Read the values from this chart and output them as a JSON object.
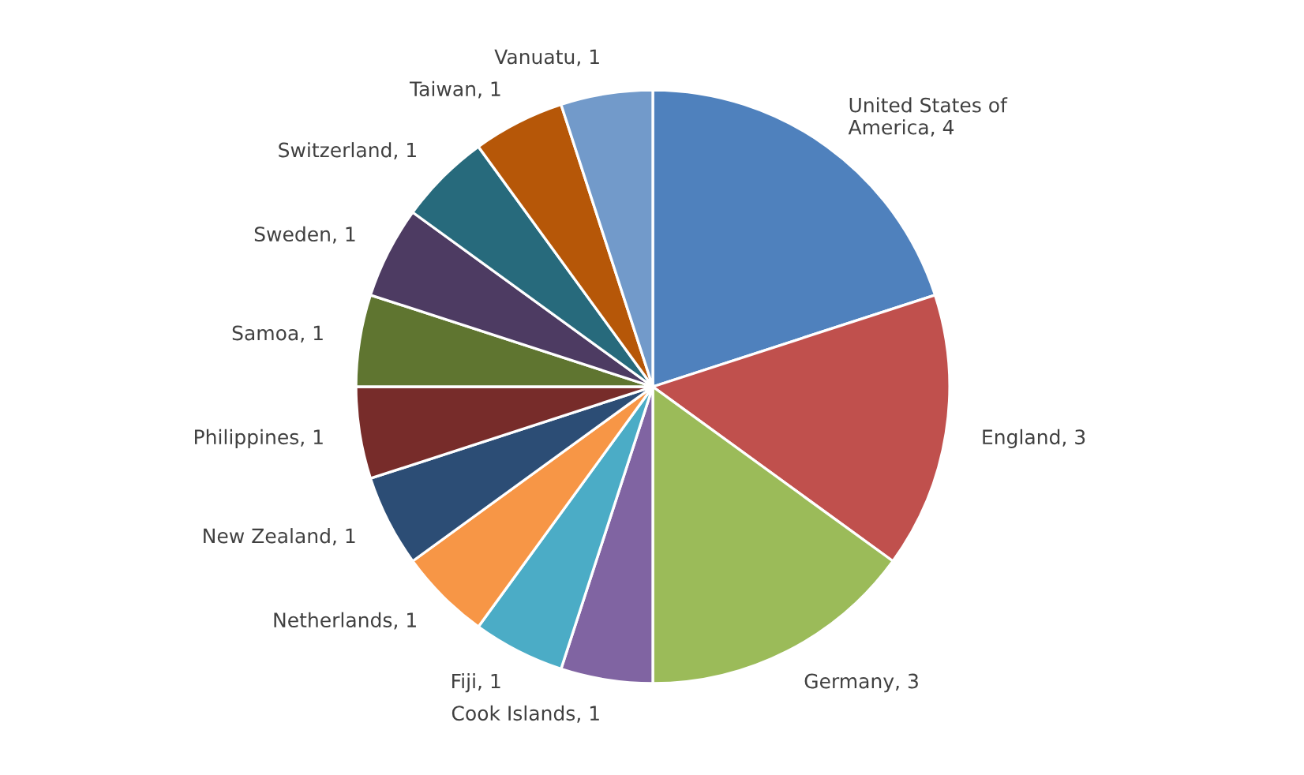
{
  "chart_data": {
    "type": "pie",
    "categories": [
      "United States of America, 4",
      "England, 3",
      "Germany, 3",
      "Cook Islands, 1",
      "Fiji, 1",
      "Netherlands, 1",
      "New Zealand, 1",
      "Philippines, 1",
      "Samoa, 1",
      "Sweden, 1",
      "Switzerland, 1",
      "Taiwan, 1",
      "Vanuatu, 1"
    ],
    "values": [
      4,
      3,
      3,
      1,
      1,
      1,
      1,
      1,
      1,
      1,
      1,
      1,
      1
    ],
    "colors": [
      "#4f81bd",
      "#c0504d",
      "#9bbb59",
      "#8064a2",
      "#4bacc6",
      "#f79646",
      "#2c4d75",
      "#772c2a",
      "#5f7530",
      "#4d3b62",
      "#276a7c",
      "#b65708",
      "#729aca"
    ],
    "legend": false
  }
}
